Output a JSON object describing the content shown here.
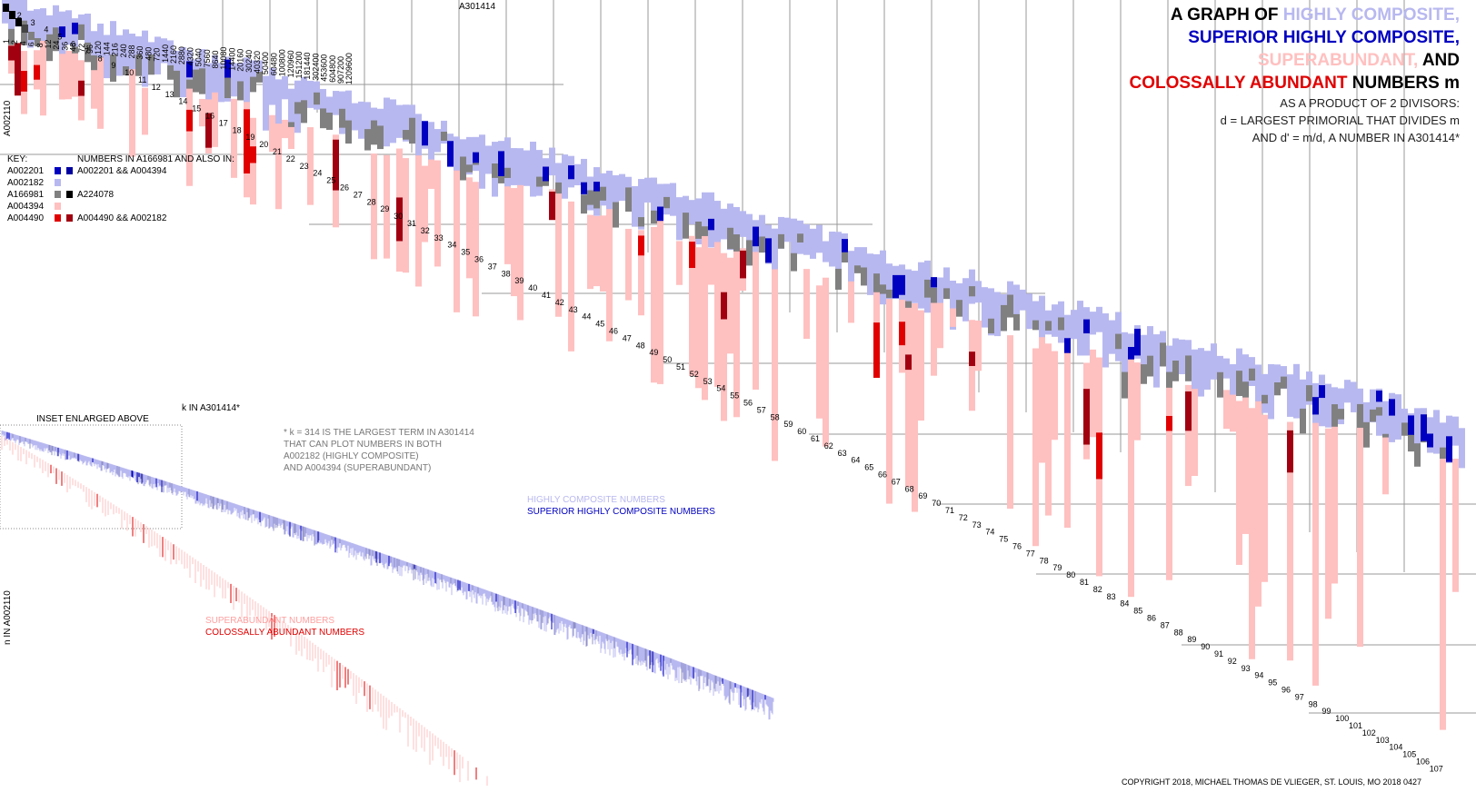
{
  "title": {
    "line1_prefix": "A GRAPH OF ",
    "line1_colored": "HIGHLY COMPOSITE,",
    "line2": "SUPERIOR HIGHLY COMPOSITE,",
    "line3_colored": "SUPERABUNDANT,",
    "line3_suffix": " AND",
    "line4_colored": "COLOSSALLY ABUNDANT",
    "line4_suffix": " NUMBERS m",
    "sub1": "AS A PRODUCT OF 2 DIVISORS:",
    "sub2": "d = LARGEST PRIMORIAL THAT DIVIDES m",
    "sub3": "AND d' = m/d, A NUMBER IN A301414*"
  },
  "colors": {
    "hcn": "#b8b8f0",
    "shcn": "#0000c0",
    "sa": "#ffc0c0",
    "ca": "#e00000",
    "both_hcn_sa": "#808080",
    "dark_both": "#000000",
    "ca_shcn": "#a00010"
  },
  "axis_labels": {
    "top_sequence": "A301414",
    "left_axis": "A002110",
    "inset_k": "k IN A301414*",
    "inset_n": "n IN A002110",
    "inset_label": "INSET ENLARGED ABOVE"
  },
  "key": {
    "title": "KEY:",
    "header": "NUMBERS IN A166981 AND ALSO IN:",
    "rows": [
      {
        "seq": "A002201",
        "also": "A002201 && A004394"
      },
      {
        "seq": "A002182",
        "also": ""
      },
      {
        "seq": "A166981",
        "also": "A224078"
      },
      {
        "seq": "A004394",
        "also": ""
      },
      {
        "seq": "A004490",
        "also": "A004490 && A002182"
      }
    ]
  },
  "note": {
    "line1": "* k = 314 IS THE LARGEST TERM IN A301414",
    "line2": "THAT CAN PLOT NUMBERS IN BOTH",
    "line3": "A002182 (HIGHLY COMPOSITE)",
    "line4": "AND A004394 (SUPERABUNDANT)"
  },
  "inset_legend": {
    "hcn": "HIGHLY COMPOSITE NUMBERS",
    "shcn": "SUPERIOR HIGHLY COMPOSITE NUMBERS",
    "sa": "SUPERABUNDANT NUMBERS",
    "ca": "COLOSSALLY ABUNDANT NUMBERS"
  },
  "copyright": "COPYRIGHT 2018, MICHAEL THOMAS DE VLIEGER, ST. LOUIS, MO 2018 0427",
  "chart_data": {
    "type": "heatmap",
    "x_sequence": "A301414",
    "y_sequence": "A002110",
    "x_column_labels": [
      "1",
      "2",
      "4",
      "6",
      "8",
      "12",
      "24",
      "36",
      "48",
      "72",
      "96",
      "120",
      "144",
      "216",
      "240",
      "288",
      "360",
      "480",
      "720",
      "1440",
      "2160",
      "2880",
      "4320",
      "5040",
      "7560",
      "8640",
      "10080",
      "14400",
      "20160",
      "30240",
      "40320",
      "50400",
      "60480",
      "100800",
      "120960",
      "151200",
      "181440",
      "302400",
      "453600",
      "604800",
      "907200",
      "1209600"
    ],
    "y_row_labels": [
      "1",
      "2",
      "3",
      "4",
      "5",
      "6",
      "7",
      "8",
      "9",
      "10",
      "11",
      "12",
      "13",
      "14",
      "15",
      "16",
      "17",
      "18",
      "19",
      "20",
      "21",
      "22",
      "23",
      "24",
      "25",
      "26",
      "27",
      "28",
      "29",
      "30",
      "31",
      "32",
      "33",
      "34",
      "35",
      "36",
      "37",
      "38",
      "39",
      "40",
      "41",
      "42",
      "43",
      "44",
      "45",
      "46",
      "47",
      "48",
      "49",
      "50",
      "51",
      "52",
      "53",
      "54",
      "55",
      "56",
      "57",
      "58",
      "59",
      "60",
      "61",
      "62",
      "63",
      "64",
      "65",
      "66",
      "67",
      "68",
      "69",
      "70",
      "71",
      "72",
      "73",
      "74",
      "75",
      "76",
      "77",
      "78",
      "79",
      "80",
      "81",
      "82",
      "83",
      "84",
      "85",
      "86",
      "87",
      "88",
      "89",
      "90",
      "91",
      "92",
      "93",
      "94",
      "95",
      "96",
      "97",
      "98",
      "99",
      "100",
      "101",
      "102",
      "103",
      "104",
      "105",
      "106",
      "107"
    ],
    "categories": [
      "A002182 highly composite",
      "A002201 superior highly composite",
      "A004394 superabundant",
      "A004490 colossally abundant",
      "A166981 and A002182 and A004394"
    ]
  }
}
